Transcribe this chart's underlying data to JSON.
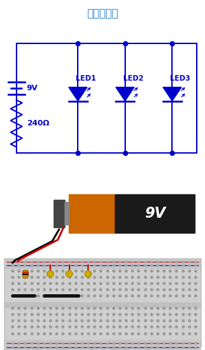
{
  "title": "并联连接图",
  "title_color": "#1a7acc",
  "bg_color": "#ffffff",
  "circuit": {
    "line_color": "#0000cc",
    "battery_voltage": "9V",
    "resistor_label": "240Ω",
    "led_labels": [
      "LED1",
      "LED2",
      "LED3"
    ],
    "junction_color": "#0000cc"
  },
  "battery": {
    "body_orange": "#cc6600",
    "body_black": "#1a1a1a",
    "terminal_color": "#555555",
    "label": "9V",
    "label_color": "#ffffff"
  },
  "breadboard": {
    "bg_color": "#d8d8d8",
    "dot_color": "#aaaaaa",
    "rail_top_color": "#e0e0e0",
    "resistor_body": "#cc9922",
    "led_body_color": "#ccaa00",
    "led_wire_color": "#cc0000",
    "jump_wire_color": "#111111"
  }
}
